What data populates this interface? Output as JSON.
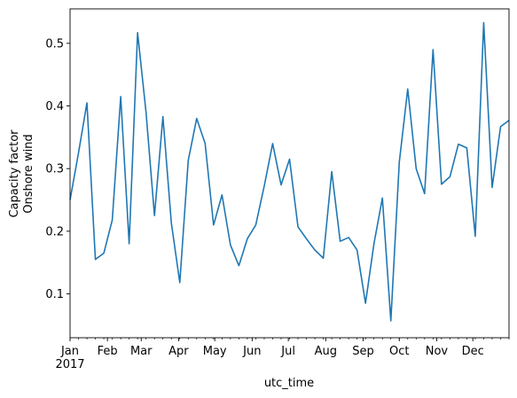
{
  "chart_data": {
    "type": "line",
    "xlabel": "utc_time",
    "ylabel_lines": [
      "Capacity factor",
      "Onshore wind"
    ],
    "ylim": [
      0.03,
      0.555
    ],
    "yticks": [
      0.1,
      0.2,
      0.3,
      0.4,
      0.5
    ],
    "ytick_labels": [
      "0.1",
      "0.2",
      "0.3",
      "0.4",
      "0.5"
    ],
    "xlim": [
      "2017-01-01",
      "2017-12-31"
    ],
    "xticks": [
      {
        "date": "2017-01-01",
        "label": "Jan"
      },
      {
        "date": "2017-02-01",
        "label": "Feb"
      },
      {
        "date": "2017-03-01",
        "label": "Mar"
      },
      {
        "date": "2017-04-01",
        "label": "Apr"
      },
      {
        "date": "2017-05-01",
        "label": "May"
      },
      {
        "date": "2017-06-01",
        "label": "Jun"
      },
      {
        "date": "2017-07-01",
        "label": "Jul"
      },
      {
        "date": "2017-08-01",
        "label": "Aug"
      },
      {
        "date": "2017-09-01",
        "label": "Sep"
      },
      {
        "date": "2017-10-01",
        "label": "Oct"
      },
      {
        "date": "2017-11-01",
        "label": "Nov"
      },
      {
        "date": "2017-12-01",
        "label": "Dec"
      }
    ],
    "year_label": "2017",
    "line_color": "#1f77b4",
    "series": [
      {
        "x": [
          "2017-01-01",
          "2017-01-08",
          "2017-01-15",
          "2017-01-22",
          "2017-01-29",
          "2017-02-05",
          "2017-02-12",
          "2017-02-19",
          "2017-02-26",
          "2017-03-05",
          "2017-03-12",
          "2017-03-19",
          "2017-03-26",
          "2017-04-02",
          "2017-04-09",
          "2017-04-16",
          "2017-04-23",
          "2017-04-30",
          "2017-05-07",
          "2017-05-14",
          "2017-05-21",
          "2017-05-28",
          "2017-06-04",
          "2017-06-11",
          "2017-06-18",
          "2017-06-25",
          "2017-07-02",
          "2017-07-09",
          "2017-07-16",
          "2017-07-23",
          "2017-07-30",
          "2017-08-06",
          "2017-08-13",
          "2017-08-20",
          "2017-08-27",
          "2017-09-03",
          "2017-09-10",
          "2017-09-17",
          "2017-09-24",
          "2017-10-01",
          "2017-10-08",
          "2017-10-15",
          "2017-10-22",
          "2017-10-29",
          "2017-11-05",
          "2017-11-12",
          "2017-11-19",
          "2017-11-26",
          "2017-12-03",
          "2017-12-10",
          "2017-12-17",
          "2017-12-24",
          "2017-12-31"
        ],
        "values": [
          0.25,
          0.325,
          0.405,
          0.155,
          0.165,
          0.218,
          0.415,
          0.18,
          0.517,
          0.39,
          0.225,
          0.383,
          0.213,
          0.118,
          0.313,
          0.38,
          0.34,
          0.21,
          0.258,
          0.178,
          0.145,
          0.188,
          0.21,
          0.272,
          0.34,
          0.274,
          0.315,
          0.207,
          0.188,
          0.17,
          0.157,
          0.295,
          0.184,
          0.19,
          0.17,
          0.085,
          0.18,
          0.253,
          0.057,
          0.31,
          0.427,
          0.3,
          0.26,
          0.49,
          0.275,
          0.287,
          0.339,
          0.333,
          0.192,
          0.533,
          0.27,
          0.367,
          0.377
        ]
      }
    ]
  }
}
